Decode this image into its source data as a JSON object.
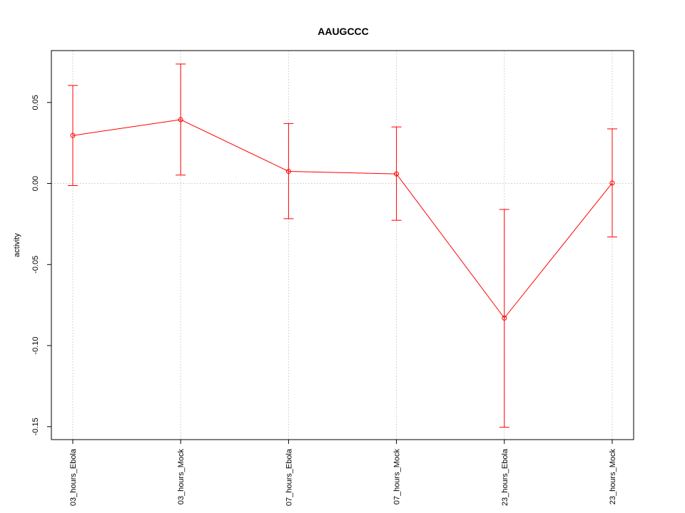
{
  "chart_data": {
    "type": "line",
    "title": "AAUGCCC",
    "xlabel": "",
    "ylabel": "activity",
    "categories": [
      "03_hours_Ebola",
      "03_hours_Mock",
      "07_hours_Ebola",
      "07_hours_Mock",
      "23_hours_Ebola",
      "23_hours_Mock"
    ],
    "series": [
      {
        "values": [
          0.0296,
          0.0394,
          0.0075,
          0.0059,
          -0.083,
          0.0003
        ],
        "lower": [
          -0.0013,
          0.0052,
          -0.0217,
          -0.0227,
          -0.1504,
          -0.033
        ],
        "upper": [
          0.0605,
          0.0737,
          0.037,
          0.0349,
          -0.016,
          0.0337
        ]
      }
    ],
    "ylim": [
      -0.158,
      0.082
    ],
    "yticks": [
      -0.15,
      -0.1,
      -0.05,
      0.0,
      0.05
    ],
    "ytick_labels": [
      "-0.15",
      "-0.10",
      "-0.05",
      "0.00",
      "0.05"
    ],
    "grid": true,
    "colors": {
      "series": "#ff0000",
      "grid": "#d3d3d3",
      "axis": "#000000"
    }
  }
}
